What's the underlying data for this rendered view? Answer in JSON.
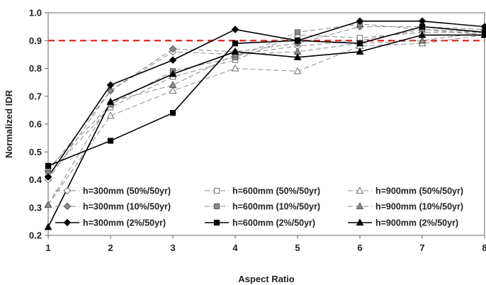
{
  "chart_data": {
    "type": "line",
    "xlabel": "Aspect Ratio",
    "ylabel": "Normalized IDR",
    "x": [
      1,
      2,
      3,
      4,
      5,
      6,
      7,
      8
    ],
    "xlim": [
      1,
      8
    ],
    "ylim": [
      0.2,
      1.0
    ],
    "x_ticks": [
      "1",
      "2",
      "3",
      "4",
      "5",
      "6",
      "7",
      "8"
    ],
    "y_ticks": [
      "0.2",
      "0.3",
      "0.4",
      "0.5",
      "0.6",
      "0.7",
      "0.8",
      "0.9",
      "1.0"
    ],
    "grid": false,
    "reference_line": {
      "y": 0.9,
      "style": "dashed",
      "color": "#e8201f"
    },
    "legend_position": "bottom-center",
    "series": [
      {
        "name": "h=300mm (50%/50yr)",
        "marker": "diamond-open",
        "line": "dashed",
        "values": [
          0.4,
          0.72,
          0.86,
          0.85,
          0.88,
          0.9,
          0.94,
          0.93
        ]
      },
      {
        "name": "h=600mm (50%/50yr)",
        "marker": "square-open",
        "line": "dashed",
        "values": [
          0.42,
          0.66,
          0.77,
          0.83,
          0.92,
          0.91,
          0.93,
          0.93
        ]
      },
      {
        "name": "h=900mm (50%/50yr)",
        "marker": "triangle-open",
        "line": "dashed",
        "values": [
          0.31,
          0.63,
          0.72,
          0.8,
          0.79,
          0.88,
          0.89,
          0.92
        ]
      },
      {
        "name": "h=300mm (10%/50yr)",
        "marker": "diamond-gray",
        "line": "dashed",
        "values": [
          0.43,
          0.72,
          0.87,
          0.86,
          0.89,
          0.95,
          0.95,
          0.94
        ]
      },
      {
        "name": "h=600mm (10%/50yr)",
        "marker": "square-gray",
        "line": "dashed",
        "values": [
          0.44,
          0.67,
          0.79,
          0.84,
          0.93,
          0.96,
          0.94,
          0.92
        ]
      },
      {
        "name": "h=900mm (10%/50yr)",
        "marker": "triangle-gray",
        "line": "dashed",
        "values": [
          0.31,
          0.68,
          0.74,
          0.85,
          0.86,
          0.89,
          0.9,
          0.93
        ]
      },
      {
        "name": "h=300mm (2%/50yr)",
        "marker": "diamond-filled",
        "line": "solid",
        "values": [
          0.41,
          0.74,
          0.83,
          0.94,
          0.9,
          0.97,
          0.97,
          0.95
        ]
      },
      {
        "name": "h=600mm (2%/50yr)",
        "marker": "square-filled",
        "line": "solid",
        "values": [
          0.45,
          0.54,
          0.64,
          0.89,
          0.9,
          0.89,
          0.95,
          0.93
        ]
      },
      {
        "name": "h=900mm (2%/50yr)",
        "marker": "triangle-filled",
        "line": "solid",
        "values": [
          0.23,
          0.68,
          0.78,
          0.86,
          0.84,
          0.86,
          0.92,
          0.92
        ]
      }
    ]
  }
}
